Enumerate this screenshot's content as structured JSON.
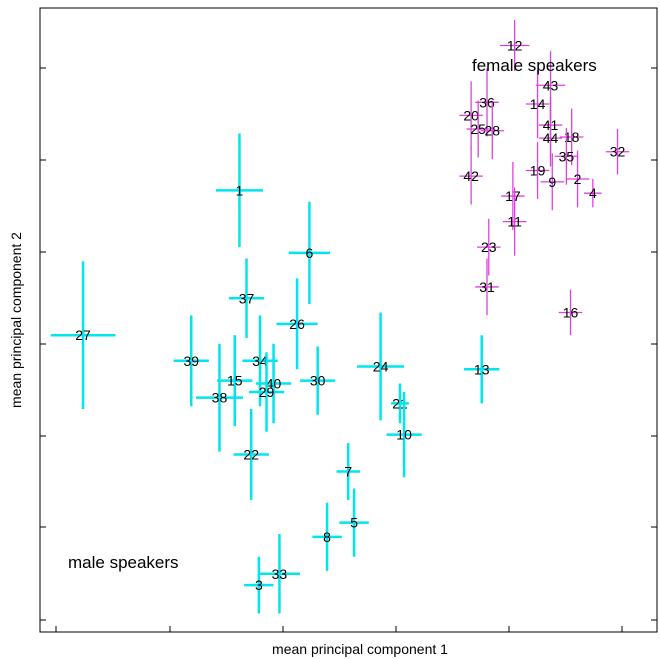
{
  "chart_data": {
    "type": "scatter",
    "title": "",
    "xlabel": "mean principal component 1",
    "ylabel": "mean principal component 2",
    "xlim": [
      0,
      100
    ],
    "ylim": [
      0,
      100
    ],
    "ticks_labeled": false,
    "grid": false,
    "legend": "none",
    "annotations": [
      "female speakers",
      "male speakers"
    ],
    "colors": {
      "female": "#e040e0",
      "male": "#00e5ee",
      "axis": "#000000",
      "point_label": "#000000"
    },
    "series": [
      {
        "group": "female",
        "points": [
          {
            "label": "12",
            "x": 78.0,
            "y": 98.5,
            "xerr": 2.5,
            "yerr": 4.5
          },
          {
            "label": "43",
            "x": 84.1,
            "y": 91.5,
            "xerr": 2.5,
            "yerr": 6.0
          },
          {
            "label": "36",
            "x": 73.3,
            "y": 88.5,
            "xerr": 2.0,
            "yerr": 6.0
          },
          {
            "label": "14",
            "x": 81.9,
            "y": 88.2,
            "xerr": 2.0,
            "yerr": 6.0
          },
          {
            "label": "20",
            "x": 70.6,
            "y": 86.2,
            "xerr": 2.0,
            "yerr": 6.0
          },
          {
            "label": "25",
            "x": 71.8,
            "y": 83.8,
            "xerr": 2.0,
            "yerr": 5.0
          },
          {
            "label": "28",
            "x": 74.2,
            "y": 83.5,
            "xerr": 2.0,
            "yerr": 5.0
          },
          {
            "label": "41",
            "x": 84.1,
            "y": 84.5,
            "xerr": 2.0,
            "yerr": 5.0
          },
          {
            "label": "44",
            "x": 84.1,
            "y": 82.2,
            "xerr": 2.0,
            "yerr": 5.0
          },
          {
            "label": "18",
            "x": 87.7,
            "y": 82.4,
            "xerr": 2.0,
            "yerr": 5.0
          },
          {
            "label": "35",
            "x": 86.8,
            "y": 79.0,
            "xerr": 2.0,
            "yerr": 5.0
          },
          {
            "label": "32",
            "x": 95.5,
            "y": 79.8,
            "xerr": 2.0,
            "yerr": 4.0
          },
          {
            "label": "19",
            "x": 81.9,
            "y": 76.5,
            "xerr": 2.0,
            "yerr": 5.0
          },
          {
            "label": "42",
            "x": 70.6,
            "y": 75.5,
            "xerr": 2.0,
            "yerr": 5.0
          },
          {
            "label": "9",
            "x": 84.4,
            "y": 74.5,
            "xerr": 2.0,
            "yerr": 5.0
          },
          {
            "label": "2",
            "x": 88.7,
            "y": 75.0,
            "xerr": 2.0,
            "yerr": 5.0
          },
          {
            "label": "4",
            "x": 91.3,
            "y": 72.5,
            "xerr": 1.5,
            "yerr": 2.5
          },
          {
            "label": "17",
            "x": 77.7,
            "y": 72.0,
            "xerr": 2.0,
            "yerr": 6.0
          },
          {
            "label": "11",
            "x": 78.0,
            "y": 67.5,
            "xerr": 2.0,
            "yerr": 6.0
          },
          {
            "label": "23",
            "x": 73.6,
            "y": 63.0,
            "xerr": 2.0,
            "yerr": 5.0
          },
          {
            "label": "31",
            "x": 73.3,
            "y": 56.0,
            "xerr": 2.0,
            "yerr": 5.0
          },
          {
            "label": "16",
            "x": 87.5,
            "y": 51.5,
            "xerr": 2.0,
            "yerr": 4.0
          }
        ]
      },
      {
        "group": "male",
        "points": [
          {
            "label": "1",
            "x": 31.2,
            "y": 73.0,
            "xerr": 4.0,
            "yerr": 10.0
          },
          {
            "label": "6",
            "x": 43.1,
            "y": 62.0,
            "xerr": 3.5,
            "yerr": 9.0
          },
          {
            "label": "37",
            "x": 32.4,
            "y": 54.0,
            "xerr": 3.0,
            "yerr": 7.0
          },
          {
            "label": "26",
            "x": 41.0,
            "y": 49.5,
            "xerr": 3.5,
            "yerr": 8.0
          },
          {
            "label": "27",
            "x": 4.6,
            "y": 47.5,
            "xerr": 5.5,
            "yerr": 13.0
          },
          {
            "label": "39",
            "x": 23.0,
            "y": 43.0,
            "xerr": 3.0,
            "yerr": 8.0
          },
          {
            "label": "34",
            "x": 34.7,
            "y": 43.0,
            "xerr": 3.0,
            "yerr": 8.0
          },
          {
            "label": "24",
            "x": 55.2,
            "y": 42.0,
            "xerr": 4.0,
            "yerr": 9.5
          },
          {
            "label": "13",
            "x": 72.4,
            "y": 41.5,
            "xerr": 3.0,
            "yerr": 6.0
          },
          {
            "label": "15",
            "x": 30.4,
            "y": 39.5,
            "xerr": 3.0,
            "yerr": 8.0
          },
          {
            "label": "40",
            "x": 37.0,
            "y": 39.0,
            "xerr": 3.0,
            "yerr": 7.0
          },
          {
            "label": "30",
            "x": 44.5,
            "y": 39.5,
            "xerr": 3.0,
            "yerr": 6.0
          },
          {
            "label": "29",
            "x": 35.8,
            "y": 37.5,
            "xerr": 3.0,
            "yerr": 7.0
          },
          {
            "label": "38",
            "x": 27.8,
            "y": 36.5,
            "xerr": 4.0,
            "yerr": 9.5
          },
          {
            "label": "21",
            "x": 58.5,
            "y": 35.5,
            "xerr": 1.5,
            "yerr": 3.5
          },
          {
            "label": "10",
            "x": 59.2,
            "y": 30.0,
            "xerr": 3.0,
            "yerr": 7.5
          },
          {
            "label": "22",
            "x": 33.2,
            "y": 26.5,
            "xerr": 3.0,
            "yerr": 8.0
          },
          {
            "label": "7",
            "x": 49.7,
            "y": 23.5,
            "xerr": 2.0,
            "yerr": 5.0
          },
          {
            "label": "5",
            "x": 50.7,
            "y": 14.5,
            "xerr": 2.5,
            "yerr": 6.0
          },
          {
            "label": "8",
            "x": 46.1,
            "y": 12.0,
            "xerr": 2.5,
            "yerr": 6.0
          },
          {
            "label": "33",
            "x": 38.0,
            "y": 5.5,
            "xerr": 3.5,
            "yerr": 7.0
          },
          {
            "label": "3",
            "x": 34.5,
            "y": 3.5,
            "xerr": 2.5,
            "yerr": 5.0
          }
        ]
      }
    ]
  }
}
